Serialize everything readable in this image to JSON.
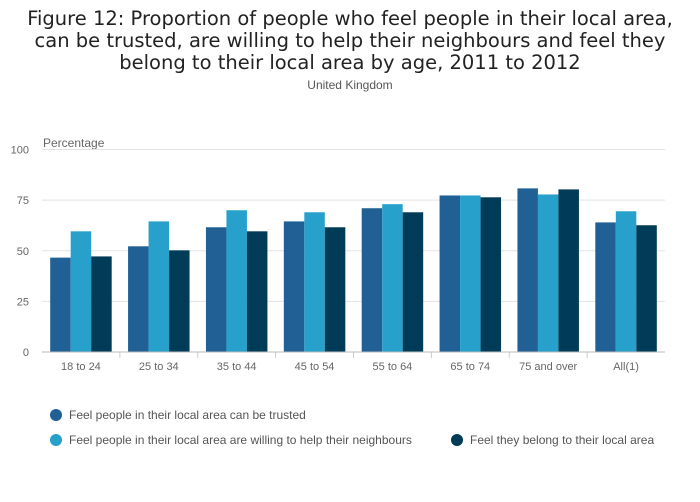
{
  "chart_data": {
    "type": "bar",
    "title": "Figure 12: Proportion of people who feel people in their local area, can be trusted, are willing to help their neighbours and feel they belong to their local area by age, 2011 to 2012",
    "subtitle": "United Kingdom",
    "ylabel": "Percentage",
    "xlabel": "",
    "ylim": [
      0,
      100
    ],
    "yticks": [
      "0",
      "25",
      "50",
      "75",
      "100"
    ],
    "categories": [
      "18 to 24",
      "25 to 34",
      "35 to 44",
      "45 to 54",
      "55 to 64",
      "65 to 74",
      "75 and over",
      "All(1)"
    ],
    "series": [
      {
        "name": "Feel people in their local area can be trusted",
        "color": "#206095",
        "values": [
          46.6,
          52.2,
          61.6,
          64.5,
          71.0,
          77.3,
          80.8,
          64.0
        ]
      },
      {
        "name": "Feel people in their local area are willing to help their neighbours",
        "color": "#27a0cc",
        "values": [
          59.6,
          64.5,
          70.0,
          69.0,
          73.0,
          77.3,
          77.8,
          69.5
        ]
      },
      {
        "name": "Feel they belong to their local area",
        "color": "#003c57",
        "values": [
          47.2,
          50.2,
          59.6,
          61.6,
          69.0,
          76.4,
          80.3,
          62.6
        ]
      }
    ],
    "grid": true,
    "legend_placement": "bottom"
  }
}
